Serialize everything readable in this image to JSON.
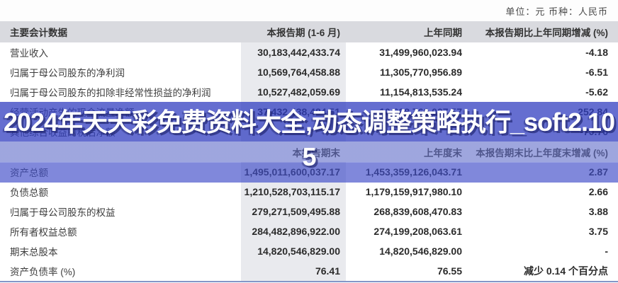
{
  "meta": {
    "unit_label": "单位：元  币种：人民币"
  },
  "overlay": {
    "line1": "2024年天天彩免费资料大全,动态调整策略执行_soft2.10",
    "line2": "5",
    "band_color": "#4b57c5"
  },
  "colors": {
    "header_bg": "#d9dadf",
    "column_shade": "#e9eaee",
    "bottom_rule": "#8296c8",
    "overlay_blue": "#4b57c5",
    "text": "#2b2b2b"
  },
  "table_current_period": {
    "headers": {
      "col1": "主要会计数据",
      "col2": "本报告期 (1-6 月)",
      "col3": "上年同期",
      "col4": "本报告期比上年同期增减 (%)"
    },
    "rows": [
      {
        "label": "营业收入",
        "current": "30,183,442,433.74",
        "prior": "31,499,960,023.94",
        "change": "-4.18"
      },
      {
        "label": "归属于母公司股东的净利润",
        "current": "10,569,764,458.88",
        "prior": "11,305,770,956.89",
        "change": "-6.51"
      },
      {
        "label": "归属于母公司股东的扣除非经常性损益的净利润",
        "current": "10,527,482,059.69",
        "prior": "11,154,813,535.24",
        "change": "-5.62"
      },
      {
        "label": "经营活动产生的现金流量净额",
        "current": "37,432,438,484.51",
        "prior": "10,608,760,007.57",
        "change": "252.84"
      },
      {
        "label": "其他综合收益的税后净额",
        "current": "",
        "prior": "",
        "change": "-70.76"
      }
    ]
  },
  "table_period_end": {
    "headers": {
      "col1": "",
      "col2": "本报告期末",
      "col3": "上年度末",
      "col4": "本报告期末比上年度末增减 (%)"
    },
    "rows": [
      {
        "label": "资产总额",
        "current": "1,495,011,600,037.17",
        "prior": "1,453,359,126,043.71",
        "change": "2.87"
      },
      {
        "label": "负债总额",
        "current": "1,210,528,703,115.17",
        "prior": "1,179,159,917,980.10",
        "change": "2.66"
      },
      {
        "label": "归属于母公司股东的权益",
        "current": "279,271,509,495.88",
        "prior": "268,839,608,470.83",
        "change": "3.88"
      },
      {
        "label": "所有者权益总额",
        "current": "284,482,896,922.00",
        "prior": "274,199,208,063.61",
        "change": "3.75"
      },
      {
        "label": "期末总股本",
        "current": "14,820,546,829.00",
        "prior": "14,820,546,829.00",
        "change": "-"
      },
      {
        "label": "资产负债率 (%)",
        "current": "76.41",
        "prior": "76.55",
        "change_prefix": "减少 ",
        "change_value": "0.14",
        "change_suffix": " 个百分点"
      }
    ]
  }
}
